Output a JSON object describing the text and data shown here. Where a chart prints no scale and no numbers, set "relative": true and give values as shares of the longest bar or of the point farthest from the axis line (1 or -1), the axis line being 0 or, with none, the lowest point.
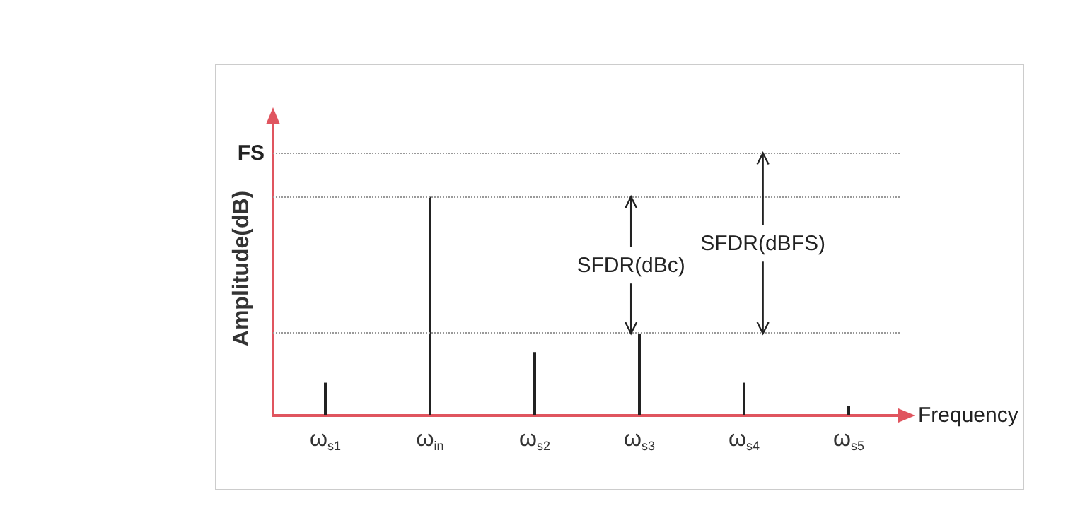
{
  "chart_data": {
    "type": "bar",
    "relative": true,
    "xlabel": "Frequency",
    "ylabel": "Amplitude(dB)",
    "categories": [
      "ω$_{s1}$",
      "ω$_{in}$",
      "ω$_{s2}$",
      "ω$_{s3}$",
      "ω$_{s4}$",
      "ω$_{s5}$"
    ],
    "values": [
      0.15,
      1,
      0.29,
      0.375,
      0.15,
      0.045
    ],
    "color": "#222222",
    "ref_lines": [
      {
        "axis": "y",
        "value": 1.2,
        "label": "FS",
        "color": "#999999",
        "line_style": "dotted"
      },
      {
        "axis": "y",
        "value": 1,
        "label": null,
        "color": "#999999",
        "line_style": "dotted"
      },
      {
        "axis": "y",
        "value": 0.375,
        "label": null,
        "color": "#999999",
        "line_style": "dotted"
      }
    ],
    "annotations": [
      "SFDR(dBc)",
      "SFDR(dBFS)"
    ],
    "grid": false
  }
}
